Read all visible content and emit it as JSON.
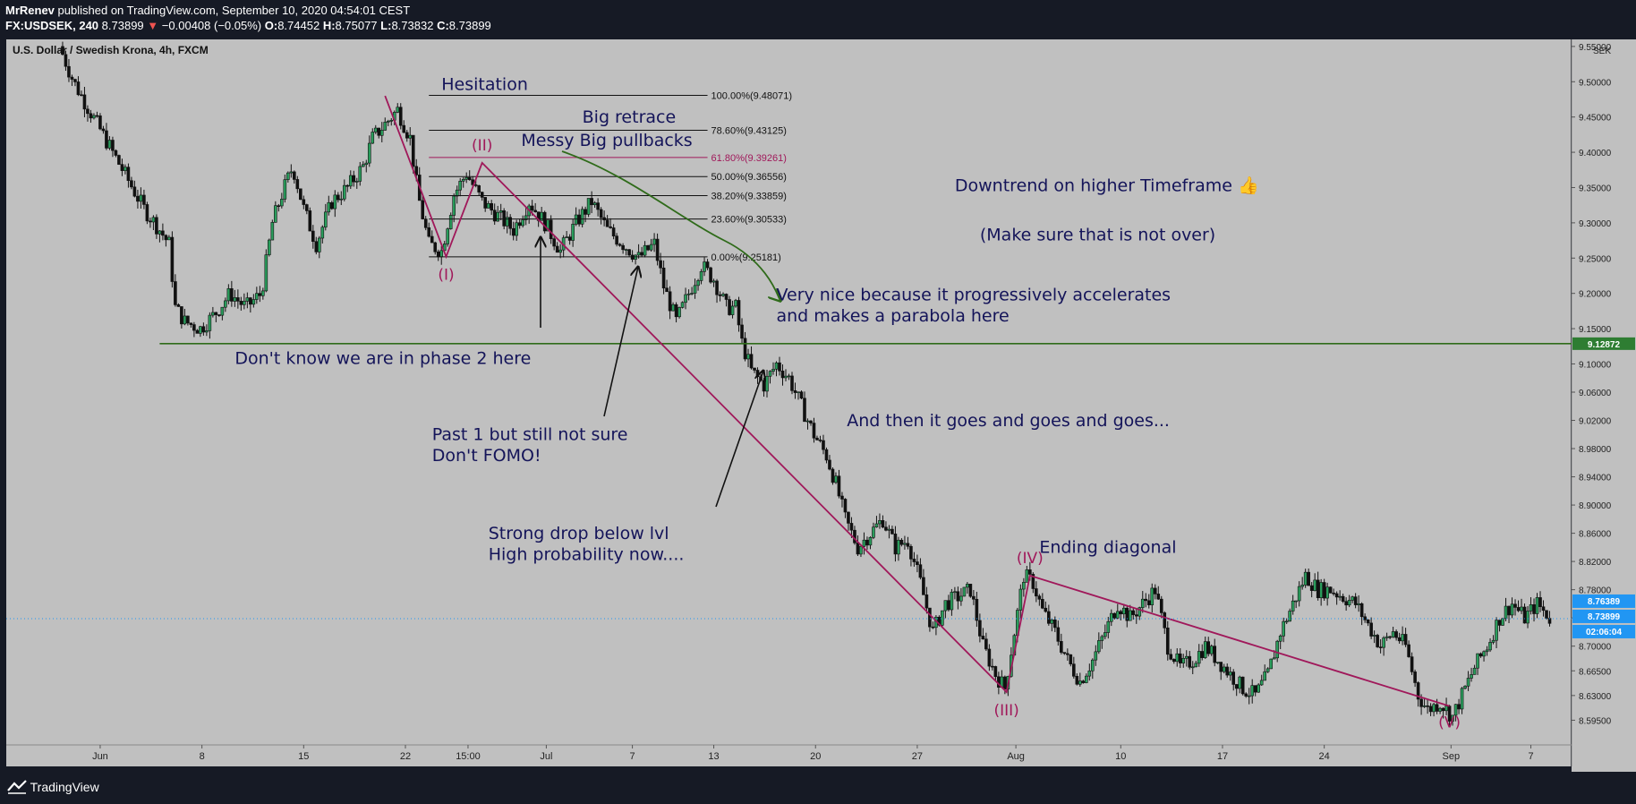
{
  "header": {
    "author": "MrRenev",
    "published": "published on TradingView.com, September 10, 2020 04:54:01 CEST",
    "symbol": "FX:USDSEK, 240",
    "last": "8.73899",
    "arrow": "▼",
    "change": "−0.00408 (−0.05%)",
    "o_label": "O:",
    "o": "8.74452",
    "h_label": "H:",
    "h": "8.75077",
    "l_label": "L:",
    "l": "8.73832",
    "c_label": "C:",
    "c": "8.73899"
  },
  "chart_title": "U.S. Dollar / Swedish Krona, 4h, FXCM",
  "currency": "SEK",
  "footer": {
    "brand": "TradingView"
  },
  "colors": {
    "background": "#c0c0c0",
    "wave": "#a0185a",
    "green": "#2f6b1a",
    "text": "#141459",
    "axis_bg": "#c0c0c0",
    "dark": "#161a25",
    "badge_blue": "#2196f3",
    "badge_green": "#2e7d32"
  },
  "chart_data": {
    "type": "candlestick",
    "title": "U.S. Dollar / Swedish Krona, 4h, FXCM",
    "ylim": [
      8.56,
      9.56
    ],
    "xlim": [
      0,
      100
    ],
    "y_ticks": [
      "9.55000",
      "9.50000",
      "9.45000",
      "9.40000",
      "9.35000",
      "9.30000",
      "9.25000",
      "9.20000",
      "9.15000",
      "9.10000",
      "9.06000",
      "9.02000",
      "8.98000",
      "8.94000",
      "8.90000",
      "8.86000",
      "8.82000",
      "8.78000",
      "8.74000",
      "8.70000",
      "8.66500",
      "8.63000",
      "8.59500"
    ],
    "y_tick_values": [
      9.55,
      9.5,
      9.45,
      9.4,
      9.35,
      9.3,
      9.25,
      9.2,
      9.15,
      9.1,
      9.06,
      9.02,
      8.98,
      8.94,
      8.9,
      8.86,
      8.82,
      8.78,
      8.74,
      8.7,
      8.665,
      8.63,
      8.595
    ],
    "x_ticks": [
      {
        "label": "Jun",
        "x": 6.0
      },
      {
        "label": "8",
        "x": 12.5
      },
      {
        "label": "15",
        "x": 19.0
      },
      {
        "label": "22",
        "x": 25.5
      },
      {
        "label": "15:00",
        "x": 29.5
      },
      {
        "label": "Jul",
        "x": 34.5
      },
      {
        "label": "7",
        "x": 40.0
      },
      {
        "label": "13",
        "x": 45.2
      },
      {
        "label": "20",
        "x": 51.7
      },
      {
        "label": "27",
        "x": 58.2
      },
      {
        "label": "Aug",
        "x": 64.5
      },
      {
        "label": "10",
        "x": 71.2
      },
      {
        "label": "17",
        "x": 77.7
      },
      {
        "label": "24",
        "x": 84.2
      },
      {
        "label": "Sep",
        "x": 92.3
      },
      {
        "label": "7",
        "x": 97.4
      }
    ],
    "price_path": [
      [
        3.6,
        9.55
      ],
      [
        4.5,
        9.5
      ],
      [
        6,
        9.44
      ],
      [
        7,
        9.4
      ],
      [
        8,
        9.36
      ],
      [
        9,
        9.32
      ],
      [
        10,
        9.29
      ],
      [
        10.6,
        9.27
      ],
      [
        11,
        9.18
      ],
      [
        11.6,
        9.16
      ],
      [
        12.6,
        9.15
      ],
      [
        13.5,
        9.17
      ],
      [
        14.5,
        9.2
      ],
      [
        15.5,
        9.18
      ],
      [
        16.5,
        9.2
      ],
      [
        17.2,
        9.3
      ],
      [
        17.8,
        9.34
      ],
      [
        18.5,
        9.38
      ],
      [
        19.2,
        9.32
      ],
      [
        20,
        9.27
      ],
      [
        21,
        9.33
      ],
      [
        22,
        9.35
      ],
      [
        23,
        9.38
      ],
      [
        23.6,
        9.42
      ],
      [
        24.4,
        9.44
      ],
      [
        25.2,
        9.46
      ],
      [
        26,
        9.42
      ],
      [
        26.5,
        9.34
      ],
      [
        27.2,
        9.27
      ],
      [
        28,
        9.26
      ],
      [
        28.8,
        9.34
      ],
      [
        29.6,
        9.37
      ],
      [
        30.6,
        9.33
      ],
      [
        31.6,
        9.31
      ],
      [
        32.6,
        9.29
      ],
      [
        33.6,
        9.33
      ],
      [
        34.6,
        9.3
      ],
      [
        35.6,
        9.26
      ],
      [
        36.6,
        9.3
      ],
      [
        37.6,
        9.33
      ],
      [
        38.6,
        9.29
      ],
      [
        39.6,
        9.27
      ],
      [
        40.6,
        9.25
      ],
      [
        41.6,
        9.27
      ],
      [
        42.2,
        9.21
      ],
      [
        43,
        9.16
      ],
      [
        43.8,
        9.2
      ],
      [
        44.6,
        9.24
      ],
      [
        45.4,
        9.22
      ],
      [
        46.2,
        9.18
      ],
      [
        46.8,
        9.18
      ],
      [
        47.2,
        9.13
      ],
      [
        47.8,
        9.09
      ],
      [
        48.6,
        9.07
      ],
      [
        49.4,
        9.1
      ],
      [
        50.2,
        9.08
      ],
      [
        51,
        9.04
      ],
      [
        51.8,
        9.0
      ],
      [
        52.6,
        8.97
      ],
      [
        53.2,
        8.93
      ],
      [
        53.8,
        8.88
      ],
      [
        54.6,
        8.84
      ],
      [
        55.4,
        8.86
      ],
      [
        56.2,
        8.88
      ],
      [
        57,
        8.84
      ],
      [
        57.8,
        8.85
      ],
      [
        58.6,
        8.79
      ],
      [
        59.4,
        8.72
      ],
      [
        60.2,
        8.76
      ],
      [
        61,
        8.77
      ],
      [
        61.8,
        8.78
      ],
      [
        62.6,
        8.7
      ],
      [
        63.4,
        8.66
      ],
      [
        64,
        8.64
      ],
      [
        64.6,
        8.72
      ],
      [
        65.2,
        8.8
      ],
      [
        65.8,
        8.79
      ],
      [
        66.4,
        8.75
      ],
      [
        67.2,
        8.72
      ],
      [
        68,
        8.68
      ],
      [
        68.8,
        8.65
      ],
      [
        69.6,
        8.68
      ],
      [
        70.4,
        8.72
      ],
      [
        71.2,
        8.76
      ],
      [
        72,
        8.74
      ],
      [
        72.8,
        8.76
      ],
      [
        73.6,
        8.78
      ],
      [
        74.4,
        8.7
      ],
      [
        75.2,
        8.67
      ],
      [
        76,
        8.68
      ],
      [
        76.8,
        8.7
      ],
      [
        77.6,
        8.68
      ],
      [
        78.4,
        8.66
      ],
      [
        79.2,
        8.64
      ],
      [
        80,
        8.63
      ],
      [
        80.8,
        8.66
      ],
      [
        81.6,
        8.72
      ],
      [
        82.4,
        8.76
      ],
      [
        83.2,
        8.8
      ],
      [
        84,
        8.78
      ],
      [
        84.8,
        8.78
      ],
      [
        85.6,
        8.77
      ],
      [
        86.4,
        8.76
      ],
      [
        87.2,
        8.73
      ],
      [
        88,
        8.7
      ],
      [
        88.8,
        8.72
      ],
      [
        89.6,
        8.7
      ],
      [
        90.4,
        8.63
      ],
      [
        91,
        8.61
      ],
      [
        91.8,
        8.62
      ],
      [
        92.6,
        8.6
      ],
      [
        93.2,
        8.63
      ],
      [
        94,
        8.67
      ],
      [
        94.8,
        8.7
      ],
      [
        95.6,
        8.74
      ],
      [
        96.4,
        8.76
      ],
      [
        97.2,
        8.74
      ],
      [
        98,
        8.76
      ],
      [
        98.8,
        8.74
      ]
    ],
    "fib_levels": [
      {
        "label": "100.00%(9.48071)",
        "value": 9.48071,
        "highlight": false
      },
      {
        "label": "78.60%(9.43125)",
        "value": 9.43125,
        "highlight": false
      },
      {
        "label": "61.80%(9.39261)",
        "value": 9.39261,
        "highlight": true
      },
      {
        "label": "50.00%(9.36556)",
        "value": 9.36556,
        "highlight": false
      },
      {
        "label": "38.20%(9.33859)",
        "value": 9.33859,
        "highlight": false
      },
      {
        "label": "23.60%(9.30533)",
        "value": 9.30533,
        "highlight": false
      },
      {
        "label": "0.00%(9.25181)",
        "value": 9.25181,
        "highlight": false
      }
    ],
    "fib_x": [
      27.0,
      44.8
    ],
    "support_level": {
      "label": "9.12872",
      "value": 9.12872,
      "x_start": 9.8
    },
    "price_badges": [
      {
        "label": "8.76389",
        "value": 8.76389,
        "color": "badge_blue"
      },
      {
        "label": "8.73899",
        "value": 8.73899,
        "color": "badge_blue"
      },
      {
        "label": "02:06:04",
        "value": 8.717,
        "color": "badge_blue"
      }
    ],
    "last_price": 8.73899,
    "wave_points": [
      {
        "label": "(I)",
        "x": 28.1,
        "y": 9.252,
        "label_dx": 0,
        "label_dy": 26
      },
      {
        "label": "(II)",
        "x": 30.4,
        "y": 9.385,
        "label_dx": 0,
        "label_dy": -14
      },
      {
        "label": "(III)",
        "x": 63.9,
        "y": 8.635,
        "label_dx": 0,
        "label_dy": 26
      },
      {
        "label": "(IV)",
        "x": 65.4,
        "y": 8.8,
        "label_dx": 0,
        "label_dy": -14
      },
      {
        "label": "(V)",
        "x": 92.2,
        "y": 8.615,
        "label_dx": 0,
        "label_dy": 24
      }
    ],
    "wave_start": {
      "x": 24.2,
      "y": 9.48
    },
    "annotations": [
      {
        "text": "Hesitation",
        "x": 27.8,
        "y": 9.488,
        "size": 19
      },
      {
        "text": "Big retrace",
        "x": 36.8,
        "y": 9.442,
        "size": 19
      },
      {
        "text": "Messy Big pullbacks",
        "x": 32.9,
        "y": 9.409,
        "size": 19
      },
      {
        "text": "Downtrend on higher Timeframe 👍",
        "x": 60.6,
        "y": 9.345,
        "size": 19
      },
      {
        "text": "(Make sure that is not over)",
        "x": 62.2,
        "y": 9.275,
        "size": 19
      },
      {
        "text": "Very nice because it progressively accelerates",
        "x": 49.2,
        "y": 9.19,
        "size": 19
      },
      {
        "text": "and makes a parabola here",
        "x": 49.2,
        "y": 9.16,
        "size": 19
      },
      {
        "text": "Don't know we are in phase 2 here",
        "x": 14.6,
        "y": 9.1,
        "size": 19
      },
      {
        "text": "And then it goes and goes and goes...",
        "x": 53.7,
        "y": 9.012,
        "size": 19
      },
      {
        "text": "Past 1 but still not sure",
        "x": 27.2,
        "y": 8.992,
        "size": 19
      },
      {
        "text": "Don't FOMO!",
        "x": 27.2,
        "y": 8.962,
        "size": 19
      },
      {
        "text": "Strong drop below lvl",
        "x": 30.8,
        "y": 8.852,
        "size": 19
      },
      {
        "text": "High probability now....",
        "x": 30.8,
        "y": 8.822,
        "size": 19
      },
      {
        "text": "Ending diagonal",
        "x": 66.0,
        "y": 8.832,
        "size": 19
      }
    ]
  }
}
